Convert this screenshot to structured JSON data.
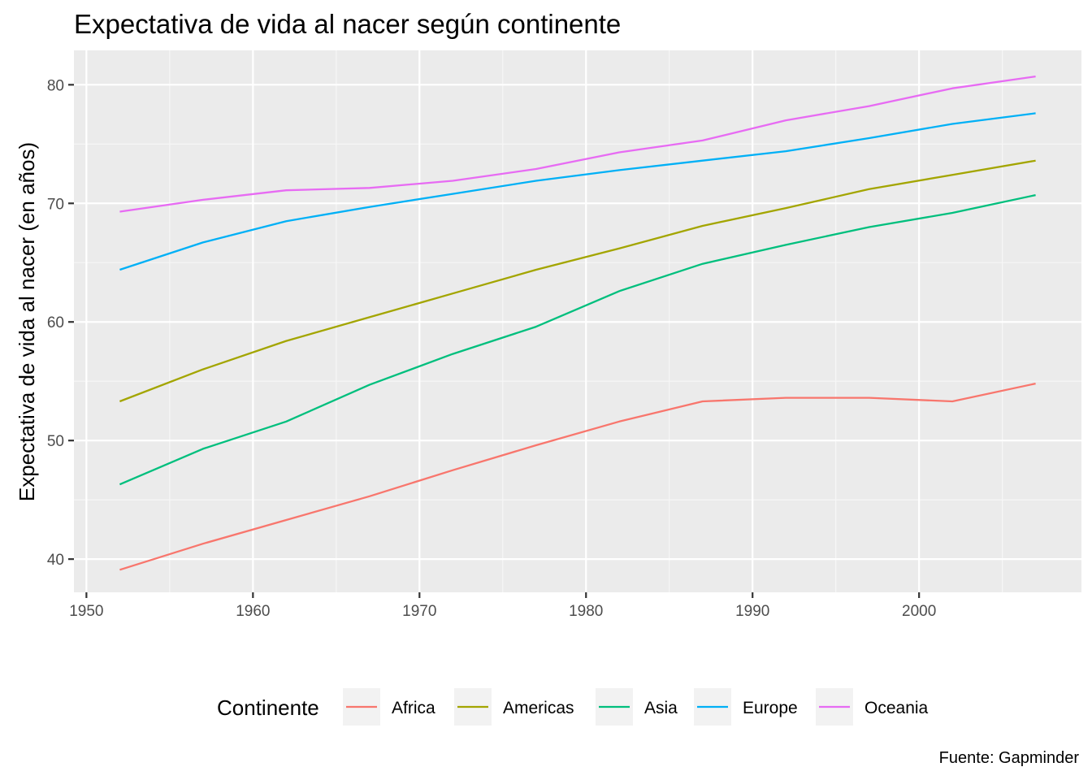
{
  "chart_data": {
    "type": "line",
    "title": "Expectativa de vida al nacer según continente",
    "xlabel": "",
    "ylabel": "Expectativa de vida al nacer (en años)",
    "caption": "Fuente: Gapminder",
    "legend_title": "Continente",
    "legend_position": "bottom",
    "grid": true,
    "xlim": [
      1949.25,
      2009.75
    ],
    "ylim": [
      37.2,
      82.9
    ],
    "x_ticks": [
      1950,
      1960,
      1970,
      1980,
      1990,
      2000
    ],
    "y_ticks": [
      40,
      50,
      60,
      70,
      80
    ],
    "x": [
      1952,
      1957,
      1962,
      1967,
      1972,
      1977,
      1982,
      1987,
      1992,
      1997,
      2002,
      2007
    ],
    "series": [
      {
        "name": "Africa",
        "color": "#F8766D",
        "values": [
          39.1,
          41.3,
          43.3,
          45.3,
          47.5,
          49.6,
          51.6,
          53.3,
          53.6,
          53.6,
          53.3,
          54.8
        ]
      },
      {
        "name": "Americas",
        "color": "#A3A500",
        "values": [
          53.3,
          56.0,
          58.4,
          60.4,
          62.4,
          64.4,
          66.2,
          68.1,
          69.6,
          71.2,
          72.4,
          73.6
        ]
      },
      {
        "name": "Asia",
        "color": "#00BF7D",
        "values": [
          46.3,
          49.3,
          51.6,
          54.7,
          57.3,
          59.6,
          62.6,
          64.9,
          66.5,
          68.0,
          69.2,
          70.7
        ]
      },
      {
        "name": "Europe",
        "color": "#00B0F6",
        "values": [
          64.4,
          66.7,
          68.5,
          69.7,
          70.8,
          71.9,
          72.8,
          73.6,
          74.4,
          75.5,
          76.7,
          77.6
        ]
      },
      {
        "name": "Oceania",
        "color": "#E76BF3",
        "values": [
          69.3,
          70.3,
          71.1,
          71.3,
          71.9,
          72.9,
          74.3,
          75.3,
          77.0,
          78.2,
          79.7,
          80.7
        ]
      }
    ]
  }
}
